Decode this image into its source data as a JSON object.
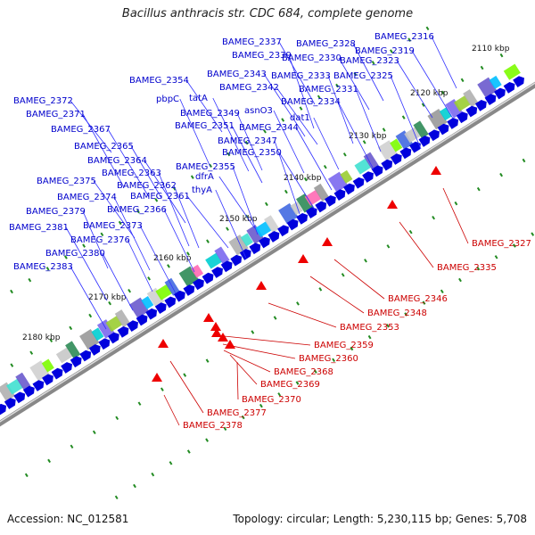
{
  "title": "Bacillus anthracis str. CDC 684, complete genome",
  "footer": {
    "accession": "Accession: NC_012581",
    "summary": "Topology: circular; Length: 5,230,115 bp; Genes: 5,708"
  },
  "colors": {
    "forward_gene": "#0000dd",
    "reverse_gene": "#ee0000",
    "forward_label": "#0000cc",
    "reverse_label": "#cc0000",
    "backbone": "#888888",
    "tick": "#228b22"
  },
  "kbp_ticks": [
    "2110 kbp",
    "2120 kbp",
    "2130 kbp",
    "2140 kbp",
    "2150 kbp",
    "2160 kbp",
    "2170 kbp",
    "2180 kbp"
  ],
  "forward_labels": [
    "BAMEG_2316",
    "BAMEG_2328",
    "BAMEG_2337",
    "BAMEG_2319",
    "BAMEG_2339",
    "BAMEG_2330",
    "BAMEG_2323",
    "BAMEG_2343",
    "BAMEG_2333",
    "BAMEG_2325",
    "BAMEG_2354",
    "BAMEG_2342",
    "BAMEG_2331",
    "pbpC",
    "tatA",
    "BAMEG_2372",
    "BAMEG_2349",
    "asnO3",
    "BAMEG_2334",
    "BAMEG_2371",
    "dat1",
    "BAMEG_2351",
    "BAMEG_2344",
    "BAMEG_2367",
    "BAMEG_2347",
    "BAMEG_2365",
    "BAMEG_2350",
    "BAMEG_2364",
    "BAMEG_2355",
    "BAMEG_2363",
    "dfrA",
    "BAMEG_2375",
    "BAMEG_2362",
    "thyA",
    "BAMEG_2374",
    "BAMEG_2361",
    "BAMEG_2379",
    "BAMEG_2366",
    "BAMEG_2373",
    "BAMEG_2381",
    "BAMEG_2376",
    "BAMEG_2380",
    "BAMEG_2383"
  ],
  "reverse_labels": [
    "BAMEG_2327",
    "BAMEG_2335",
    "BAMEG_2346",
    "BAMEG_2348",
    "BAMEG_2353",
    "BAMEG_2359",
    "BAMEG_2360",
    "BAMEG_2368",
    "BAMEG_2369",
    "BAMEG_2370",
    "BAMEG_2377",
    "BAMEG_2378"
  ]
}
